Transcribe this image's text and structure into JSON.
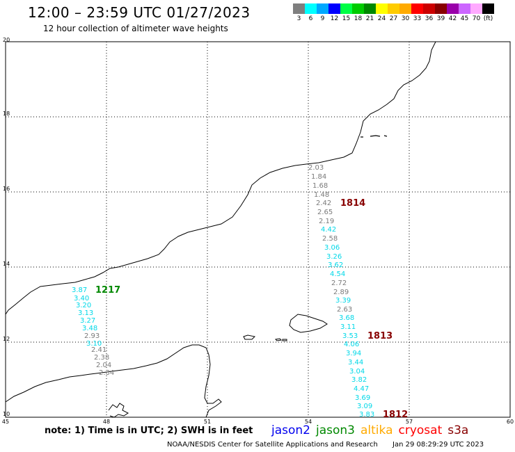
{
  "header": {
    "title": "12:00 – 23:59 UTC 01/27/2023",
    "subtitle": "12 hour collection of altimeter wave heights"
  },
  "color_legend": {
    "colors": [
      "#7f7f7f",
      "#00ffff",
      "#00a8ff",
      "#0000ff",
      "#00ff44",
      "#00cc00",
      "#008800",
      "#ffff00",
      "#ffcc00",
      "#ffaa00",
      "#ff0000",
      "#cc0000",
      "#880000",
      "#9900aa",
      "#cc66ff",
      "#ffaaff",
      "#000000"
    ],
    "labels": [
      "3",
      "6",
      "9",
      "12",
      "15",
      "18",
      "21",
      "24",
      "27",
      "30",
      "33",
      "36",
      "39",
      "42",
      "45",
      "70",
      "(ft)"
    ]
  },
  "map": {
    "lat_labels": [
      "20",
      "18",
      "16",
      "14",
      "12",
      "10"
    ],
    "lon_labels": [
      "45",
      "48",
      "51",
      "54",
      "57",
      "60"
    ]
  },
  "tracks": [
    {
      "id": "1814",
      "color": "#880000"
    },
    {
      "id": "1813",
      "color": "#880000"
    },
    {
      "id": "1812",
      "color": "#880000"
    },
    {
      "id": "1217",
      "color": "#008800"
    }
  ],
  "swh_observations": [
    {
      "value": "2.03",
      "color": "gray"
    },
    {
      "value": "1.84",
      "color": "gray"
    },
    {
      "value": "1.68",
      "color": "gray"
    },
    {
      "value": "1.48",
      "color": "gray"
    },
    {
      "value": "2.42",
      "color": "gray"
    },
    {
      "value": "2.65",
      "color": "gray"
    },
    {
      "value": "2.19",
      "color": "gray"
    },
    {
      "value": "4.42",
      "color": "cyan"
    },
    {
      "value": "2.58",
      "color": "gray"
    },
    {
      "value": "3.06",
      "color": "cyan"
    },
    {
      "value": "3.26",
      "color": "cyan"
    },
    {
      "value": "3.62",
      "color": "cyan"
    },
    {
      "value": "4.54",
      "color": "cyan"
    },
    {
      "value": "2.72",
      "color": "gray"
    },
    {
      "value": "2.89",
      "color": "gray"
    },
    {
      "value": "3.39",
      "color": "cyan"
    },
    {
      "value": "2.63",
      "color": "gray"
    },
    {
      "value": "3.68",
      "color": "cyan"
    },
    {
      "value": "3.11",
      "color": "cyan"
    },
    {
      "value": "3.53",
      "color": "cyan"
    },
    {
      "value": "4.06",
      "color": "cyan"
    },
    {
      "value": "3.94",
      "color": "cyan"
    },
    {
      "value": "3.44",
      "color": "cyan"
    },
    {
      "value": "3.04",
      "color": "cyan"
    },
    {
      "value": "3.82",
      "color": "cyan"
    },
    {
      "value": "4.47",
      "color": "cyan"
    },
    {
      "value": "3.69",
      "color": "cyan"
    },
    {
      "value": "3.09",
      "color": "cyan"
    },
    {
      "value": "3.83",
      "color": "cyan"
    },
    {
      "value": "3.87",
      "color": "cyan"
    },
    {
      "value": "3.40",
      "color": "cyan"
    },
    {
      "value": "3.20",
      "color": "cyan"
    },
    {
      "value": "3.13",
      "color": "cyan"
    },
    {
      "value": "3.27",
      "color": "cyan"
    },
    {
      "value": "3.48",
      "color": "cyan"
    },
    {
      "value": "2.93",
      "color": "gray"
    },
    {
      "value": "3.10",
      "color": "cyan"
    },
    {
      "value": "2.41",
      "color": "gray"
    },
    {
      "value": "2.38",
      "color": "gray"
    },
    {
      "value": "2.04",
      "color": "gray"
    },
    {
      "value": "2.34",
      "color": "gray"
    }
  ],
  "note": "note: 1) Time is in UTC; 2) SWH is in feet",
  "satellites": [
    {
      "name": "jason2",
      "color": "#0000ee"
    },
    {
      "name": "jason3",
      "color": "#008800"
    },
    {
      "name": "altika",
      "color": "#ffaa00"
    },
    {
      "name": "cryosat",
      "color": "#ff0000"
    },
    {
      "name": "s3a",
      "color": "#880000"
    }
  ],
  "footer": {
    "credit": "NOAA/NESDIS Center for Satellite Applications and Research",
    "timestamp": "Jan 29 08:29:29 UTC 2023"
  }
}
